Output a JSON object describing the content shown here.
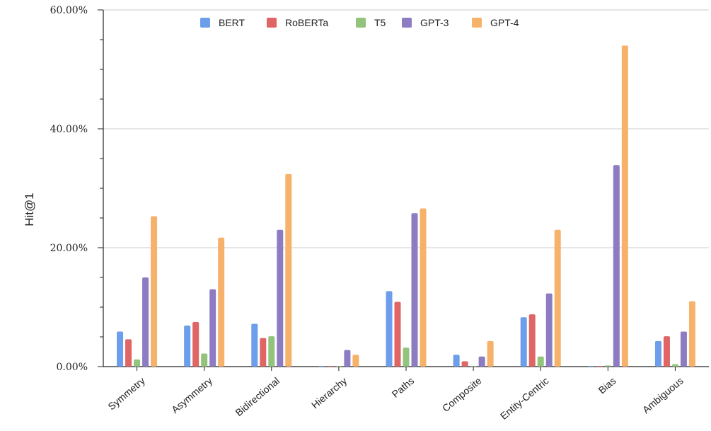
{
  "chart_data": {
    "type": "bar",
    "title": "",
    "xlabel": "",
    "ylabel": "Hit@1",
    "ylim": [
      0,
      60
    ],
    "y_ticks": [
      "0.00%",
      "20.00%",
      "40.00%",
      "60.00%"
    ],
    "y_tick_values": [
      0,
      20,
      40,
      60
    ],
    "grid": true,
    "legend_position": "top",
    "categories": [
      "Symmetry",
      "Asymmetry",
      "Bidirectional",
      "Hierarchy",
      "Paths",
      "Composite",
      "Entity-Centric",
      "Bias",
      "Ambiguous"
    ],
    "series": [
      {
        "name": "BERT",
        "color": "#6d9eeb",
        "values": [
          5.9,
          6.9,
          7.2,
          0.1,
          12.7,
          2.0,
          8.3,
          0.1,
          4.3
        ]
      },
      {
        "name": "RoBERTa",
        "color": "#e06666",
        "values": [
          4.6,
          7.5,
          4.8,
          0.1,
          10.9,
          0.9,
          8.8,
          0.1,
          5.1
        ]
      },
      {
        "name": "T5",
        "color": "#93c47d",
        "values": [
          1.2,
          2.2,
          5.1,
          0.0,
          3.2,
          0.0,
          1.7,
          0.2,
          0.4
        ]
      },
      {
        "name": "GPT-3",
        "color": "#8e7cc3",
        "values": [
          15.0,
          13.0,
          23.0,
          2.8,
          25.8,
          1.7,
          12.3,
          33.9,
          5.9
        ]
      },
      {
        "name": "GPT-4",
        "color": "#f6b26b",
        "values": [
          25.3,
          21.7,
          32.4,
          2.0,
          26.6,
          4.3,
          23.0,
          54.0,
          11.0
        ]
      }
    ]
  }
}
